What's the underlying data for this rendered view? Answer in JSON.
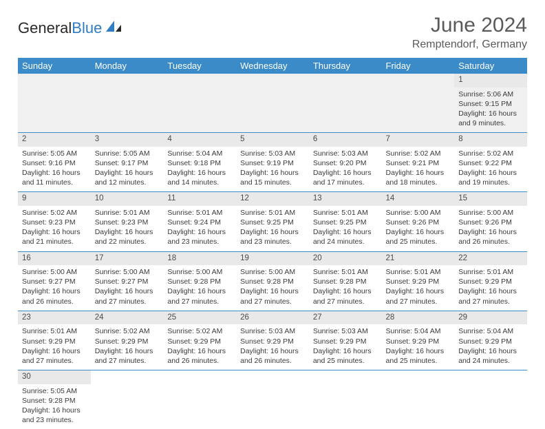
{
  "logo": {
    "text_black": "General",
    "text_blue": "Blue",
    "accent_color": "#2f7dc4"
  },
  "title": {
    "month": "June 2024",
    "location": "Remptendorf, Germany"
  },
  "colors": {
    "header_bg": "#3b8bc9",
    "header_text": "#ffffff",
    "daynum_bg": "#e9e9e9",
    "border": "#3b8bc9",
    "text": "#3a3a3a",
    "body_bg": "#ffffff"
  },
  "calendar": {
    "day_headers": [
      "Sunday",
      "Monday",
      "Tuesday",
      "Wednesday",
      "Thursday",
      "Friday",
      "Saturday"
    ],
    "first_day_column": 6,
    "days": [
      {
        "n": 1,
        "sunrise": "5:06 AM",
        "sunset": "9:15 PM",
        "daylight": "16 hours and 9 minutes."
      },
      {
        "n": 2,
        "sunrise": "5:05 AM",
        "sunset": "9:16 PM",
        "daylight": "16 hours and 11 minutes."
      },
      {
        "n": 3,
        "sunrise": "5:05 AM",
        "sunset": "9:17 PM",
        "daylight": "16 hours and 12 minutes."
      },
      {
        "n": 4,
        "sunrise": "5:04 AM",
        "sunset": "9:18 PM",
        "daylight": "16 hours and 14 minutes."
      },
      {
        "n": 5,
        "sunrise": "5:03 AM",
        "sunset": "9:19 PM",
        "daylight": "16 hours and 15 minutes."
      },
      {
        "n": 6,
        "sunrise": "5:03 AM",
        "sunset": "9:20 PM",
        "daylight": "16 hours and 17 minutes."
      },
      {
        "n": 7,
        "sunrise": "5:02 AM",
        "sunset": "9:21 PM",
        "daylight": "16 hours and 18 minutes."
      },
      {
        "n": 8,
        "sunrise": "5:02 AM",
        "sunset": "9:22 PM",
        "daylight": "16 hours and 19 minutes."
      },
      {
        "n": 9,
        "sunrise": "5:02 AM",
        "sunset": "9:23 PM",
        "daylight": "16 hours and 21 minutes."
      },
      {
        "n": 10,
        "sunrise": "5:01 AM",
        "sunset": "9:23 PM",
        "daylight": "16 hours and 22 minutes."
      },
      {
        "n": 11,
        "sunrise": "5:01 AM",
        "sunset": "9:24 PM",
        "daylight": "16 hours and 23 minutes."
      },
      {
        "n": 12,
        "sunrise": "5:01 AM",
        "sunset": "9:25 PM",
        "daylight": "16 hours and 23 minutes."
      },
      {
        "n": 13,
        "sunrise": "5:01 AM",
        "sunset": "9:25 PM",
        "daylight": "16 hours and 24 minutes."
      },
      {
        "n": 14,
        "sunrise": "5:00 AM",
        "sunset": "9:26 PM",
        "daylight": "16 hours and 25 minutes."
      },
      {
        "n": 15,
        "sunrise": "5:00 AM",
        "sunset": "9:26 PM",
        "daylight": "16 hours and 26 minutes."
      },
      {
        "n": 16,
        "sunrise": "5:00 AM",
        "sunset": "9:27 PM",
        "daylight": "16 hours and 26 minutes."
      },
      {
        "n": 17,
        "sunrise": "5:00 AM",
        "sunset": "9:27 PM",
        "daylight": "16 hours and 27 minutes."
      },
      {
        "n": 18,
        "sunrise": "5:00 AM",
        "sunset": "9:28 PM",
        "daylight": "16 hours and 27 minutes."
      },
      {
        "n": 19,
        "sunrise": "5:00 AM",
        "sunset": "9:28 PM",
        "daylight": "16 hours and 27 minutes."
      },
      {
        "n": 20,
        "sunrise": "5:01 AM",
        "sunset": "9:28 PM",
        "daylight": "16 hours and 27 minutes."
      },
      {
        "n": 21,
        "sunrise": "5:01 AM",
        "sunset": "9:29 PM",
        "daylight": "16 hours and 27 minutes."
      },
      {
        "n": 22,
        "sunrise": "5:01 AM",
        "sunset": "9:29 PM",
        "daylight": "16 hours and 27 minutes."
      },
      {
        "n": 23,
        "sunrise": "5:01 AM",
        "sunset": "9:29 PM",
        "daylight": "16 hours and 27 minutes."
      },
      {
        "n": 24,
        "sunrise": "5:02 AM",
        "sunset": "9:29 PM",
        "daylight": "16 hours and 27 minutes."
      },
      {
        "n": 25,
        "sunrise": "5:02 AM",
        "sunset": "9:29 PM",
        "daylight": "16 hours and 26 minutes."
      },
      {
        "n": 26,
        "sunrise": "5:03 AM",
        "sunset": "9:29 PM",
        "daylight": "16 hours and 26 minutes."
      },
      {
        "n": 27,
        "sunrise": "5:03 AM",
        "sunset": "9:29 PM",
        "daylight": "16 hours and 25 minutes."
      },
      {
        "n": 28,
        "sunrise": "5:04 AM",
        "sunset": "9:29 PM",
        "daylight": "16 hours and 25 minutes."
      },
      {
        "n": 29,
        "sunrise": "5:04 AM",
        "sunset": "9:29 PM",
        "daylight": "16 hours and 24 minutes."
      },
      {
        "n": 30,
        "sunrise": "5:05 AM",
        "sunset": "9:28 PM",
        "daylight": "16 hours and 23 minutes."
      }
    ],
    "labels": {
      "sunrise": "Sunrise:",
      "sunset": "Sunset:",
      "daylight": "Daylight:"
    }
  }
}
